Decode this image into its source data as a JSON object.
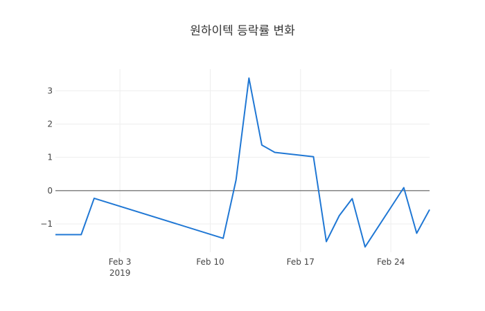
{
  "chart_data": {
    "type": "line",
    "title": "원하이텍 등락률 변화",
    "xlabel": "",
    "ylabel": "",
    "xlim": [
      "2019-01-29",
      "2019-02-27"
    ],
    "ylim": [
      -1.85,
      3.65
    ],
    "x_ticks": [
      {
        "date": "2019-02-03",
        "label": "Feb 3",
        "sublabel": "2019"
      },
      {
        "date": "2019-02-10",
        "label": "Feb 10",
        "sublabel": ""
      },
      {
        "date": "2019-02-17",
        "label": "Feb 17",
        "sublabel": ""
      },
      {
        "date": "2019-02-24",
        "label": "Feb 24",
        "sublabel": ""
      }
    ],
    "y_ticks": [
      {
        "value": -1,
        "label": "−1"
      },
      {
        "value": 0,
        "label": "0"
      },
      {
        "value": 1,
        "label": "1"
      },
      {
        "value": 2,
        "label": "2"
      },
      {
        "value": 3,
        "label": "3"
      }
    ],
    "grid": true,
    "line_color": "#1f77d4",
    "series": [
      {
        "x": [
          "2019-01-29",
          "2019-01-31",
          "2019-02-01",
          "2019-02-11",
          "2019-02-12",
          "2019-02-13",
          "2019-02-14",
          "2019-02-15",
          "2019-02-18",
          "2019-02-19",
          "2019-02-20",
          "2019-02-21",
          "2019-02-22",
          "2019-02-25",
          "2019-02-26",
          "2019-02-27"
        ],
        "y": [
          -1.32,
          -1.32,
          -0.23,
          -1.43,
          0.32,
          3.38,
          1.37,
          1.15,
          1.02,
          -1.53,
          -0.75,
          -0.24,
          -1.69,
          0.09,
          -1.28,
          -0.57
        ]
      }
    ]
  }
}
